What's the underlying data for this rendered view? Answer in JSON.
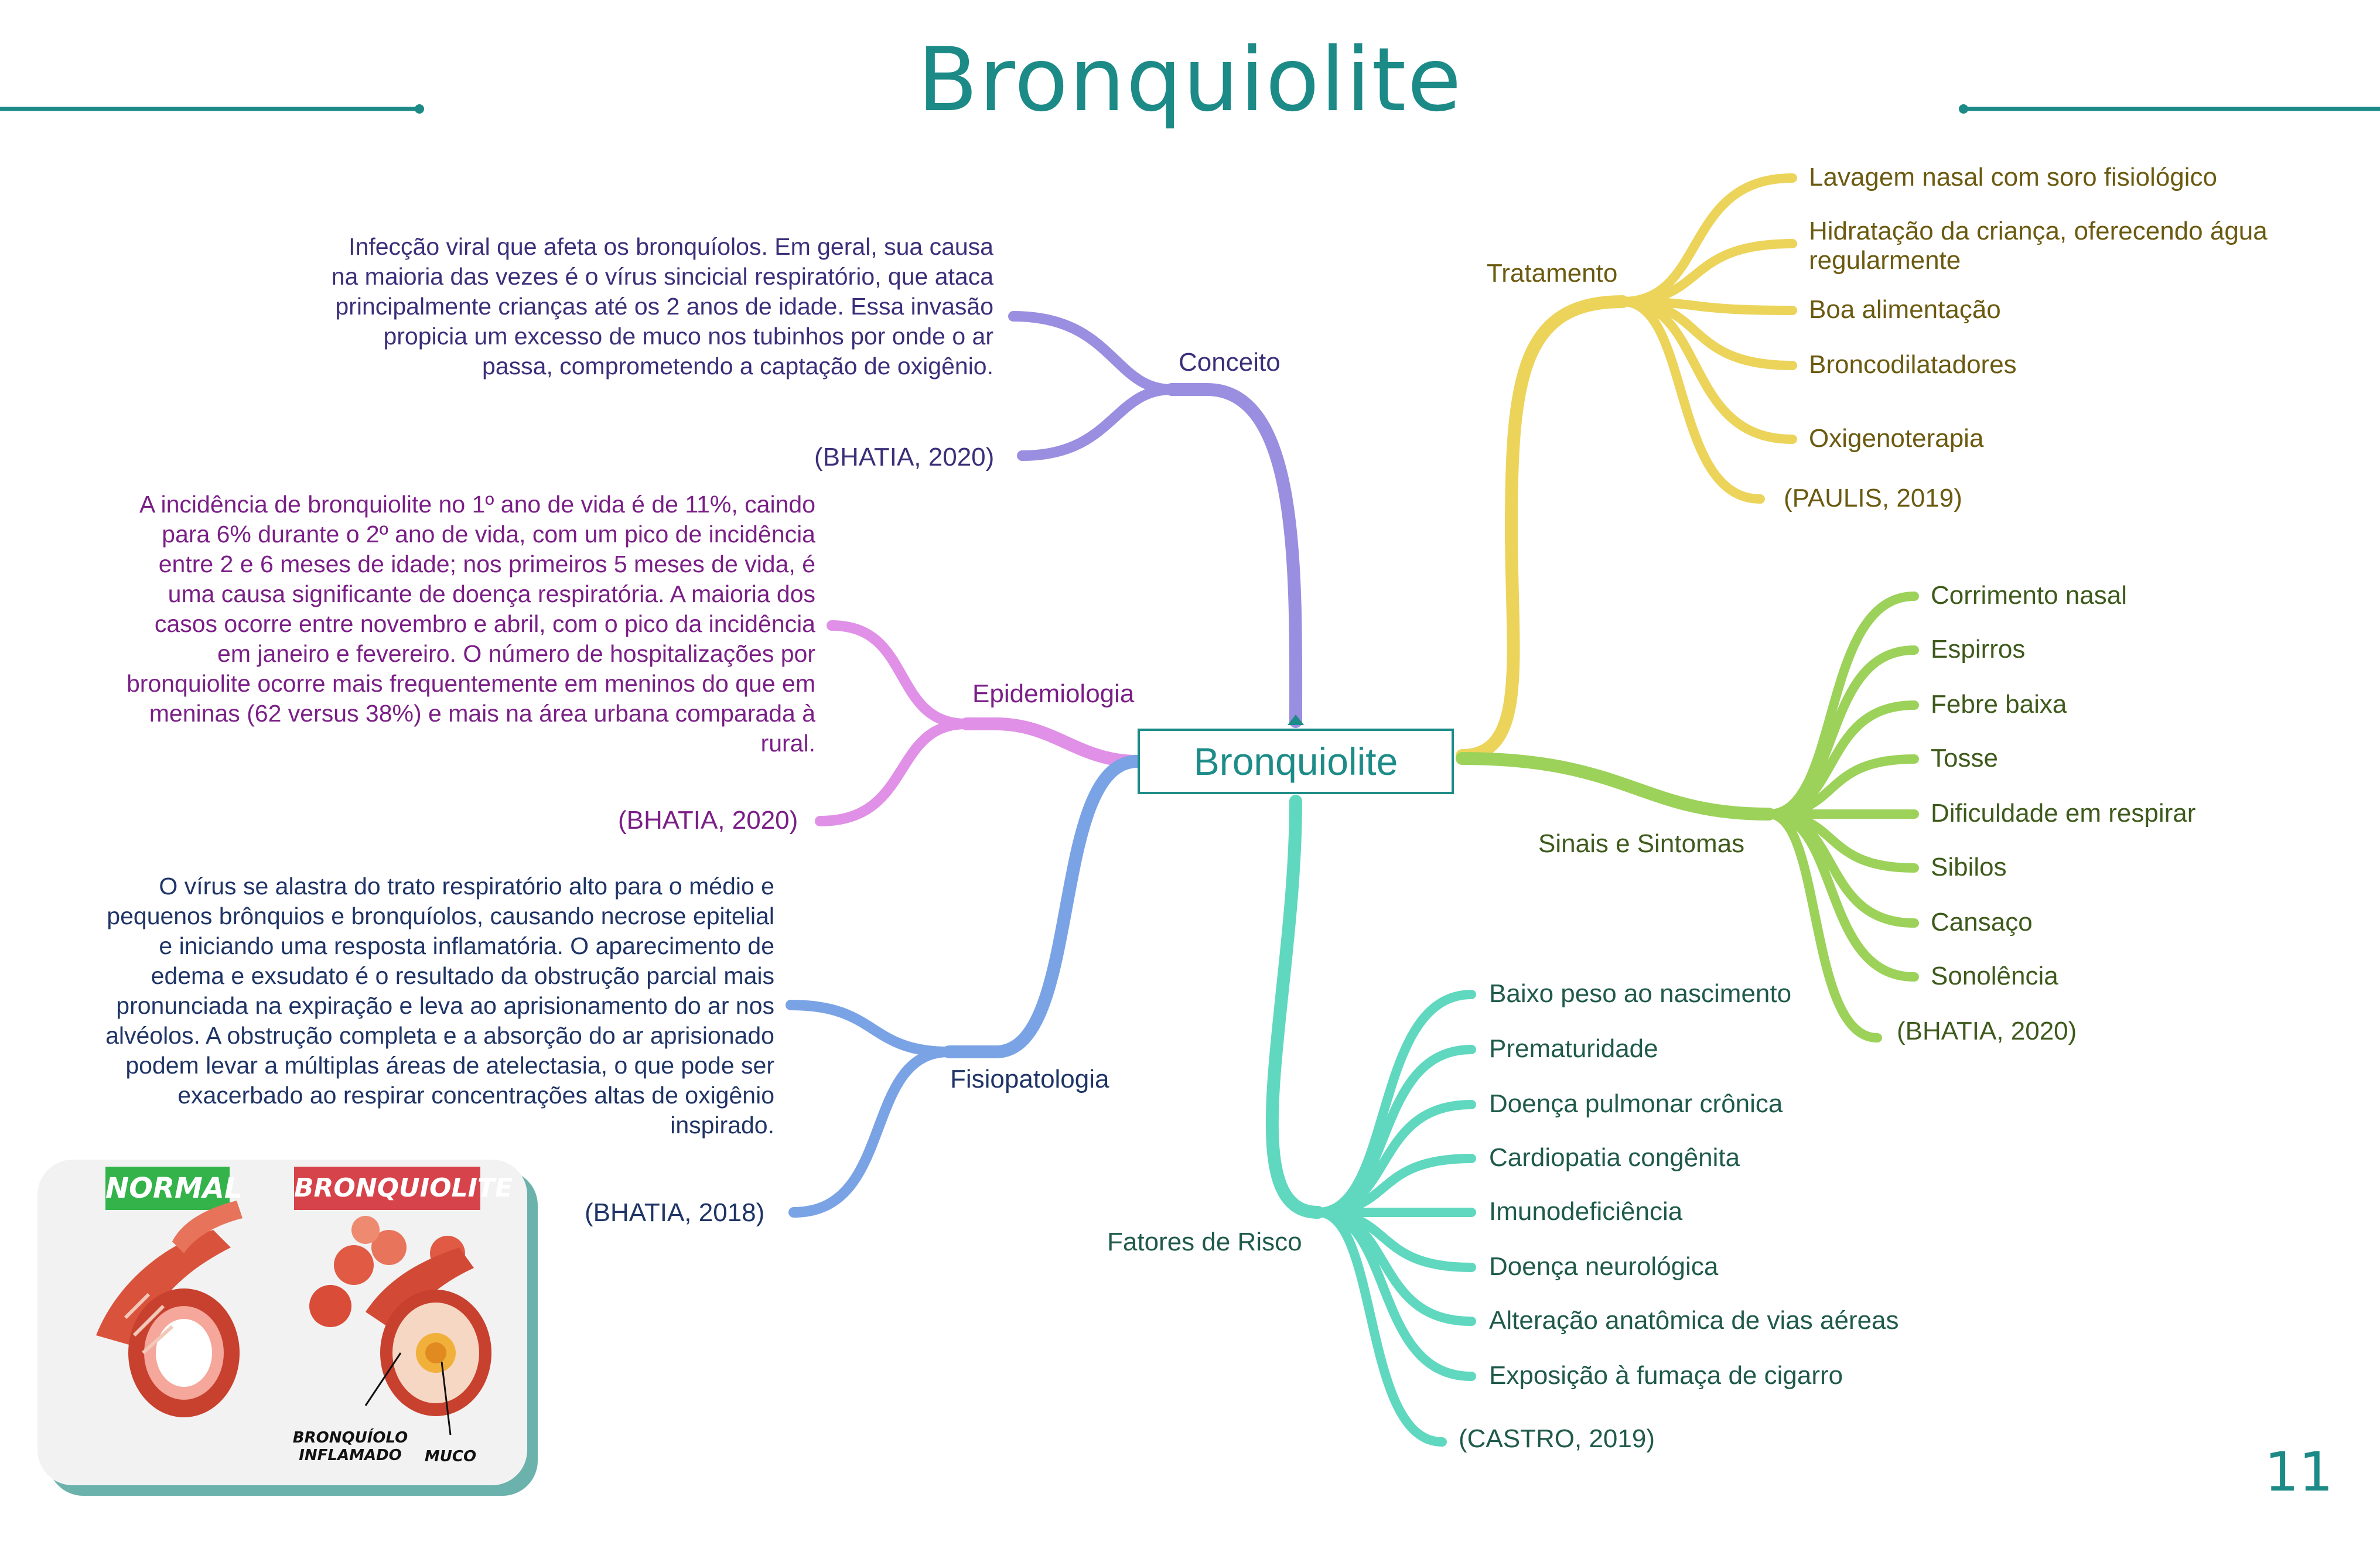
{
  "title": "Bronquiolite",
  "center": "Bronquiolite",
  "page_number": "11",
  "colors": {
    "teal": "#1c8a86",
    "conceito": "#9a8ee0",
    "epidemiologia": "#e090e6",
    "fisiopatologia": "#7aa3e6",
    "fatores": "#5fd8bf",
    "tratamento": "#ecd45a",
    "sinais": "#9cd25a"
  },
  "conceito": {
    "label": "Conceito",
    "text": "Infecção viral que afeta os bronquíolos. Em geral, sua causa na maioria das vezes é o vírus sincicial respiratório, que ataca principalmente crianças até os 2 anos de idade. Essa invasão propicia um excesso de muco nos tubinhos por onde o ar passa, comprometendo a captação de oxigênio.",
    "ref": "(BHATIA, 2020)"
  },
  "epidemiologia": {
    "label": "Epidemiologia",
    "text": "A incidência de bronquiolite no 1º ano de vida é de 11%, caindo para 6% durante o 2º ano de vida, com um pico de incidência entre 2 e 6 meses de idade; nos primeiros 5 meses de vida, é uma causa significante de doença respiratória. A maioria dos casos ocorre entre novembro e abril, com o pico da incidência em janeiro e fevereiro. O número de hospitalizações por bronquiolite ocorre mais frequentemente em meninos do que em meninas (62 versus 38%) e mais na área urbana comparada à rural.",
    "ref": "(BHATIA, 2020)"
  },
  "fisiopatologia": {
    "label": "Fisiopatologia",
    "text": "O vírus se alastra do trato respiratório alto para o médio e pequenos brônquios e bronquíolos, causando necrose epitelial e iniciando uma resposta inflamatória. O aparecimento de edema e exsudato é o resultado da obstrução parcial mais pronunciada na expiração e leva ao aprisionamento do ar nos alvéolos. A obstrução completa e a absorção do ar aprisionado podem levar a múltiplas áreas de atelectasia, o que pode ser exacerbado ao respirar concentrações altas de oxigênio inspirado.",
    "ref": "(BHATIA, 2018)"
  },
  "tratamento": {
    "label": "Tratamento",
    "items": [
      "Lavagem nasal com soro fisiológico",
      "Hidratação da criança, oferecendo água regularmente",
      "Boa alimentação",
      "Broncodilatadores",
      "Oxigenoterapia"
    ],
    "ref": "(PAULIS, 2019)"
  },
  "sinais": {
    "label": "Sinais e Sintomas",
    "items": [
      "Corrimento nasal",
      "Espirros",
      "Febre baixa",
      "Tosse",
      "Dificuldade em respirar",
      "Sibilos",
      "Cansaço",
      "Sonolência"
    ],
    "ref": "(BHATIA, 2020)"
  },
  "fatores": {
    "label": "Fatores de Risco",
    "items": [
      "Baixo peso ao nascimento",
      "Prematuridade",
      "Doença pulmonar crônica",
      "Cardiopatia congênita",
      "Imunodeficiência",
      "Doença neurológica",
      "Alteração anatômica de vias aéreas",
      "Exposição à fumaça de cigarro"
    ],
    "ref": "(CASTRO, 2019)"
  },
  "illustration": {
    "normal": "NORMAL",
    "bronquiolite": "BRONQUIOLITE",
    "inflamado": "BRONQUÍOLO INFLAMADO",
    "muco": "MUCO"
  }
}
